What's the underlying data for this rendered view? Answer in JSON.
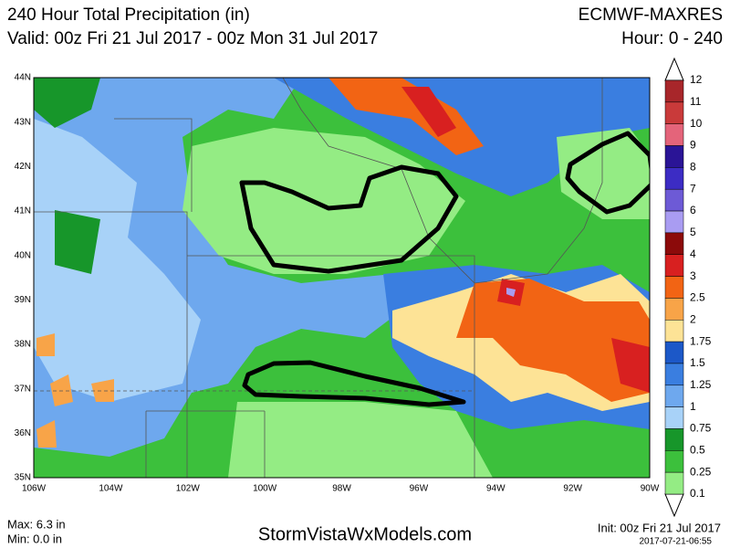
{
  "header": {
    "title": "240 Hour Total Precipitation (in)",
    "valid": "Valid: 00z Fri 21 Jul 2017 - 00z Mon 31 Jul 2017",
    "model": "ECMWF-MAXRES",
    "hour": "Hour: 0 - 240"
  },
  "map": {
    "lat_labels": [
      "44N",
      "43N",
      "42N",
      "41N",
      "40N",
      "39N",
      "38N",
      "37N",
      "36N",
      "35N"
    ],
    "lon_labels": [
      "106W",
      "104W",
      "102W",
      "100W",
      "98W",
      "96W",
      "94W",
      "92W",
      "90W"
    ]
  },
  "colorbar": {
    "labels": [
      "12",
      "11",
      "10",
      "9",
      "8",
      "7",
      "6",
      "5",
      "4",
      "3",
      "2.5",
      "2",
      "1.75",
      "1.5",
      "1.25",
      "1",
      "0.75",
      "0.5",
      "0.25",
      "0.1"
    ],
    "colors": [
      "#a8262a",
      "#c93a3a",
      "#e4647a",
      "#2a1496",
      "#3c2cc4",
      "#6d5ad6",
      "#a99cf2",
      "#8c0a0a",
      "#d82020",
      "#f26414",
      "#f8a448",
      "#fde396",
      "#1c58c8",
      "#3a7ee0",
      "#6ea8ee",
      "#a8d2f8",
      "#17962a",
      "#3cc03c",
      "#94ec84"
    ]
  },
  "footer": {
    "max": "Max: 6.3 in",
    "min": "Min: 0.0 in",
    "site": "StormVistaWxModels.com",
    "init": "Init: 00z Fri 21 Jul 2017",
    "timestamp": "2017-07-21-06:55"
  }
}
